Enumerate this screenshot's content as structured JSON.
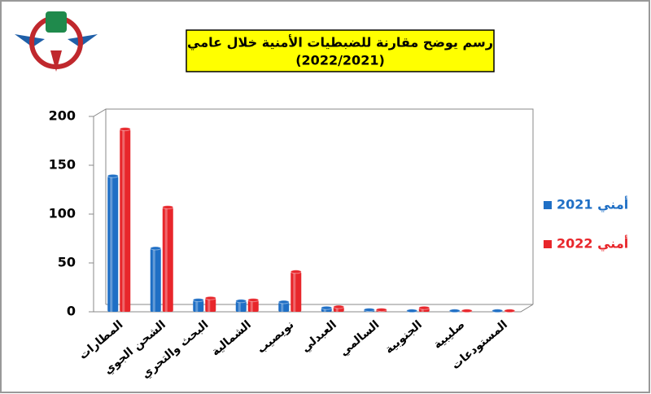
{
  "chart_data": {
    "type": "bar",
    "title": "رسم يوضح مقارنة للضبطيات الأمنية خلال عامي",
    "subtitle": "(2022/2021)",
    "categories": [
      "المطارات",
      "الشحن الجوي",
      "البحث والتحري",
      "الشمالية",
      "نويصيب",
      "العبدلي",
      "السالمي",
      "الجنوبية",
      "صليبية",
      "المستودعات"
    ],
    "series": [
      {
        "name": "أمني 2021",
        "color": "#1f6fc5",
        "values": [
          139,
          65,
          12,
          11,
          10,
          4,
          2,
          1,
          1,
          1
        ]
      },
      {
        "name": "أمني 2022",
        "color": "#e8262b",
        "values": [
          187,
          107,
          14,
          12,
          41,
          5,
          2,
          4,
          1,
          1
        ]
      }
    ],
    "ylim": [
      0,
      200
    ],
    "yticks": [
      0,
      50,
      100,
      150,
      200
    ],
    "grid": false,
    "legend": "right"
  }
}
